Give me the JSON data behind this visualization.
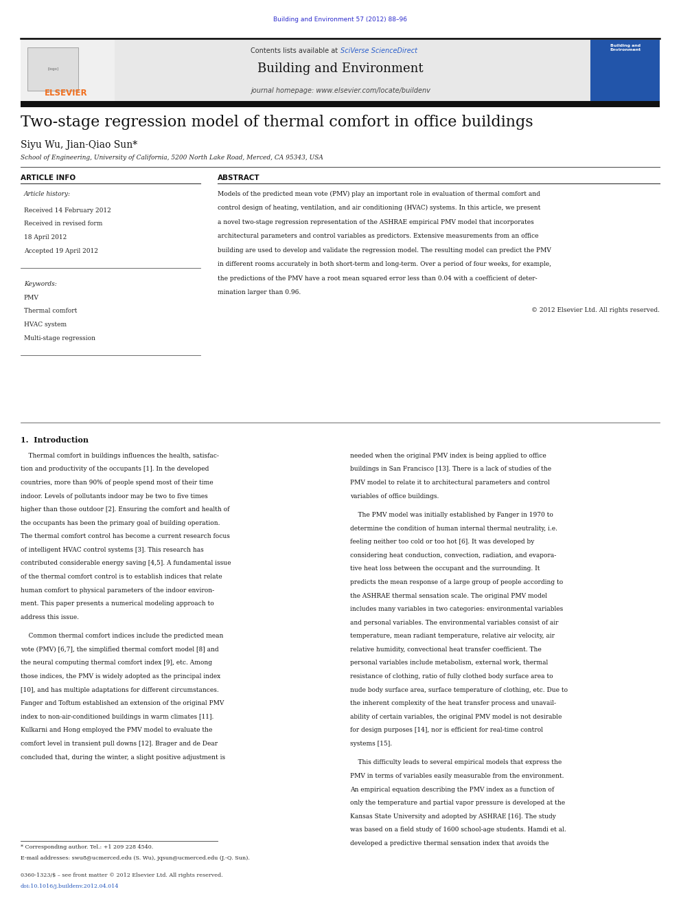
{
  "bg_color": "#ffffff",
  "page_width": 9.92,
  "page_height": 13.23,
  "journal_ref": "Building and Environment 57 (2012) 88–96",
  "journal_ref_color": "#2b2bcc",
  "header_bg": "#e8e8e8",
  "journal_name": "Building and Environment",
  "contents_text": "Contents lists available at ",
  "sciverse_text": "SciVerse ScienceDirect",
  "sciverse_color": "#2b5fcc",
  "homepage_text": "journal homepage: www.elsevier.com/locate/buildenv",
  "elsevier_color": "#f07020",
  "article_title": "Two-stage regression model of thermal comfort in office buildings",
  "authors": "Siyu Wu, Jian-Qiao Sun*",
  "affiliation": "School of Engineering, University of California, 5200 North Lake Road, Merced, CA 95343, USA",
  "article_info_label": "ARTICLE INFO",
  "abstract_label": "ABSTRACT",
  "article_history_label": "Article history:",
  "received1": "Received 14 February 2012",
  "received2": "Received in revised form",
  "received2b": "18 April 2012",
  "accepted": "Accepted 19 April 2012",
  "keywords_label": "Keywords:",
  "keyword1": "PMV",
  "keyword2": "Thermal comfort",
  "keyword3": "HVAC system",
  "keyword4": "Multi-stage regression",
  "abstract_lines": [
    "Models of the predicted mean vote (PMV) play an important role in evaluation of thermal comfort and",
    "control design of heating, ventilation, and air conditioning (HVAC) systems. In this article, we present",
    "a novel two-stage regression representation of the ASHRAE empirical PMV model that incorporates",
    "architectural parameters and control variables as predictors. Extensive measurements from an office",
    "building are used to develop and validate the regression model. The resulting model can predict the PMV",
    "in different rooms accurately in both short-term and long-term. Over a period of four weeks, for example,",
    "the predictions of the PMV have a root mean squared error less than 0.04 with a coefficient of deter-",
    "mination larger than 0.96."
  ],
  "copyright": "© 2012 Elsevier Ltd. All rights reserved.",
  "intro_heading": "1.  Introduction",
  "intro_col1_p1_lines": [
    "    Thermal comfort in buildings influences the health, satisfac-",
    "tion and productivity of the occupants [1]. In the developed",
    "countries, more than 90% of people spend most of their time",
    "indoor. Levels of pollutants indoor may be two to five times",
    "higher than those outdoor [2]. Ensuring the comfort and health of",
    "the occupants has been the primary goal of building operation.",
    "The thermal comfort control has become a current research focus",
    "of intelligent HVAC control systems [3]. This research has",
    "contributed considerable energy saving [4,5]. A fundamental issue",
    "of the thermal comfort control is to establish indices that relate",
    "human comfort to physical parameters of the indoor environ-",
    "ment. This paper presents a numerical modeling approach to",
    "address this issue."
  ],
  "intro_col1_p2_lines": [
    "    Common thermal comfort indices include the predicted mean",
    "vote (PMV) [6,7], the simplified thermal comfort model [8] and",
    "the neural computing thermal comfort index [9], etc. Among",
    "those indices, the PMV is widely adopted as the principal index",
    "[10], and has multiple adaptations for different circumstances.",
    "Fanger and Toftum established an extension of the original PMV",
    "index to non-air-conditioned buildings in warm climates [11].",
    "Kulkarni and Hong employed the PMV model to evaluate the",
    "comfort level in transient pull downs [12]. Brager and de Dear",
    "concluded that, during the winter, a slight positive adjustment is"
  ],
  "intro_col2_p1_lines": [
    "needed when the original PMV index is being applied to office",
    "buildings in San Francisco [13]. There is a lack of studies of the",
    "PMV model to relate it to architectural parameters and control",
    "variables of office buildings."
  ],
  "intro_col2_p2_lines": [
    "    The PMV model was initially established by Fanger in 1970 to",
    "determine the condition of human internal thermal neutrality, i.e.",
    "feeling neither too cold or too hot [6]. It was developed by",
    "considering heat conduction, convection, radiation, and evapora-",
    "tive heat loss between the occupant and the surrounding. It",
    "predicts the mean response of a large group of people according to",
    "the ASHRAE thermal sensation scale. The original PMV model",
    "includes many variables in two categories: environmental variables",
    "and personal variables. The environmental variables consist of air",
    "temperature, mean radiant temperature, relative air velocity, air",
    "relative humidity, convectional heat transfer coefficient. The",
    "personal variables include metabolism, external work, thermal",
    "resistance of clothing, ratio of fully clothed body surface area to",
    "nude body surface area, surface temperature of clothing, etc. Due to",
    "the inherent complexity of the heat transfer process and unavail-",
    "ability of certain variables, the original PMV model is not desirable",
    "for design purposes [14], nor is efficient for real-time control",
    "systems [15]."
  ],
  "intro_col2_p3_lines": [
    "    This difficulty leads to several empirical models that express the",
    "PMV in terms of variables easily measurable from the environment.",
    "An empirical equation describing the PMV index as a function of",
    "only the temperature and partial vapor pressure is developed at the",
    "Kansas State University and adopted by ASHRAE [16]. The study",
    "was based on a field study of 1600 school-age students. Hamdi et al.",
    "developed a predictive thermal sensation index that avoids the"
  ],
  "footnote_star": "* Corresponding author. Tel.: +1 209 228 4540.",
  "footnote_email": "E-mail addresses: swu8@ucmerced.edu (S. Wu), jqsun@ucmerced.edu (J.-Q. Sun).",
  "footnote_issn": "0360-1323/$ – see front matter © 2012 Elsevier Ltd. All rights reserved.",
  "footnote_doi": "doi:10.1016/j.buildenv.2012.04.014"
}
